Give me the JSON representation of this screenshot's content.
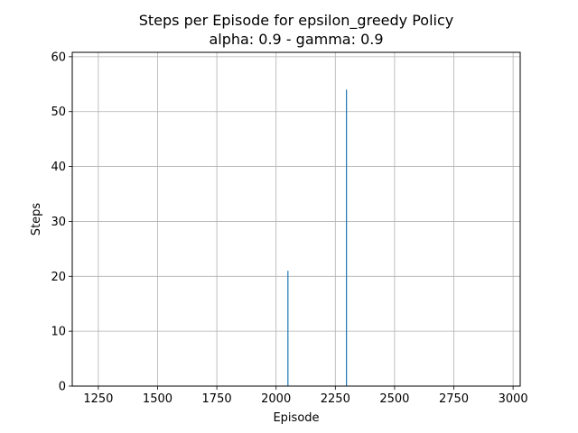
{
  "chart_data": {
    "type": "bar",
    "title": "Steps per Episode for epsilon_greedy Policy",
    "subtitle": "alpha: 0.9 - gamma: 0.9",
    "xlabel": "Episode",
    "ylabel": "Steps",
    "xlim": [
      1140,
      3030
    ],
    "ylim": [
      0,
      60.8
    ],
    "xticks": [
      1250,
      1500,
      1750,
      2000,
      2250,
      2500,
      2750,
      3000
    ],
    "yticks": [
      0,
      10,
      20,
      30,
      40,
      50,
      60
    ],
    "grid": true,
    "bar_color": "#1f77b4",
    "series": [
      {
        "x": [
          2050,
          2297
        ],
        "values": [
          21,
          54
        ]
      }
    ]
  }
}
